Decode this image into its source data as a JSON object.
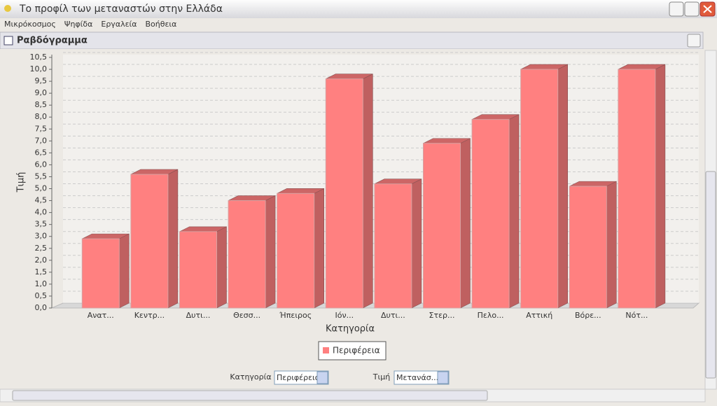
{
  "window": {
    "title": "Το προφίλ των μεταναστών στην Ελλάδα"
  },
  "menu": [
    "Μικρόκοσμος",
    "Ψηφίδα",
    "Εργαλεία",
    "Βοήθεια"
  ],
  "panel": {
    "title": "Ραβδόγραμμα"
  },
  "chart_data": {
    "type": "bar3d",
    "x_label": "Κατηγορία",
    "y_label": "Τιμή",
    "categories": [
      "Ανατ...",
      "Κεντρ...",
      "Δυτι...",
      "Θεσσ...",
      "Ήπειρος",
      "Ιόν...",
      "Δυτι...",
      "Στερ...",
      "Πελο...",
      "Αττική",
      "Βόρε...",
      "Νότ..."
    ],
    "series": [
      {
        "name": "Περιφέρεια",
        "color": "#ff8080",
        "values": [
          2.9,
          5.6,
          3.2,
          4.5,
          4.8,
          9.6,
          5.2,
          6.9,
          7.9,
          10.0,
          5.1,
          10.0
        ]
      }
    ],
    "ylim": [
      0,
      10.5
    ],
    "yticks": [
      {
        "value": 0,
        "label": "0,0"
      },
      {
        "value": 0.5,
        "label": "0,5"
      },
      {
        "value": 1,
        "label": "1,0"
      },
      {
        "value": 1.5,
        "label": "1,5"
      },
      {
        "value": 2,
        "label": "2,0"
      },
      {
        "value": 2.5,
        "label": "2,5"
      },
      {
        "value": 3,
        "label": "3,0"
      },
      {
        "value": 3.5,
        "label": "3,5"
      },
      {
        "value": 4,
        "label": "4,0"
      },
      {
        "value": 4.5,
        "label": "4,5"
      },
      {
        "value": 5,
        "label": "5,0"
      },
      {
        "value": 5.5,
        "label": "5,5"
      },
      {
        "value": 6,
        "label": "6,0"
      },
      {
        "value": 6.5,
        "label": "6,5"
      },
      {
        "value": 7,
        "label": "7,0"
      },
      {
        "value": 7.5,
        "label": "7,5"
      },
      {
        "value": 8,
        "label": "8,0"
      },
      {
        "value": 8.5,
        "label": "8,5"
      },
      {
        "value": 9,
        "label": "9,0"
      },
      {
        "value": 9.5,
        "label": "9,5"
      },
      {
        "value": 10,
        "label": "10,0"
      },
      {
        "value": 10.5,
        "label": "10,5"
      }
    ],
    "grid": true
  },
  "controls": {
    "category_label": "Κατηγορία",
    "category_value": "Περιφέρεια",
    "value_label": "Τιμή",
    "value_value": "Μετανάσ..."
  }
}
